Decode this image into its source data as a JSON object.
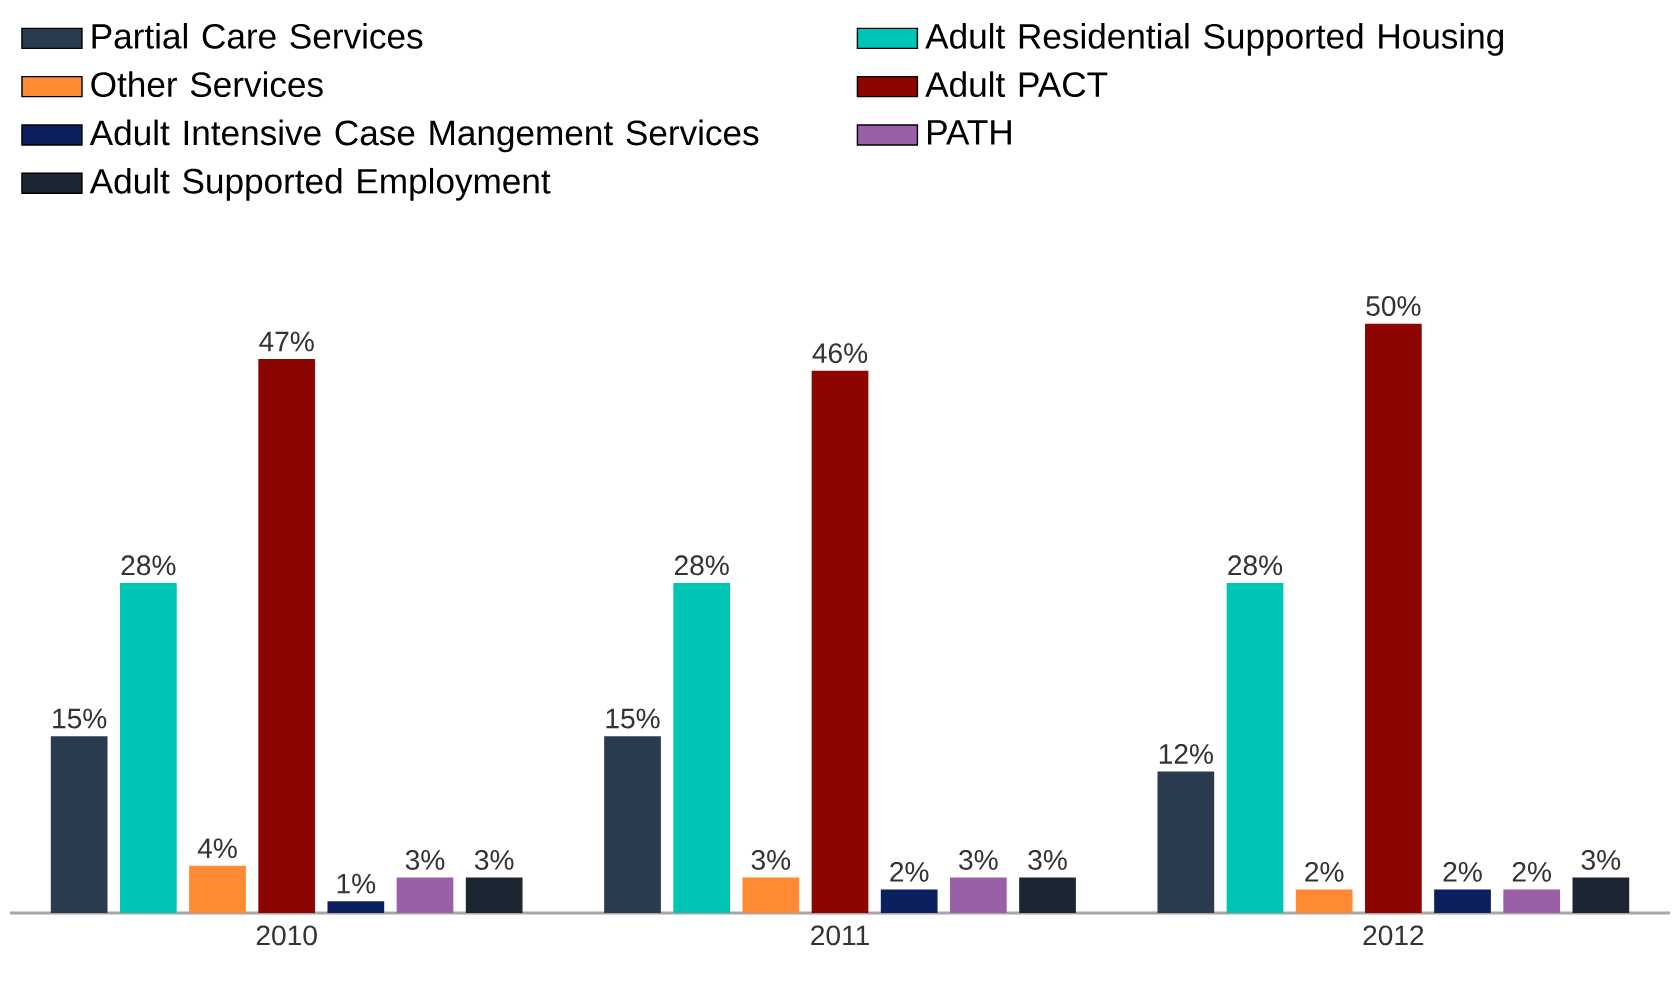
{
  "chart_data": {
    "type": "bar",
    "categories": [
      "2010",
      "2011",
      "2012"
    ],
    "legend": "top",
    "series": [
      {
        "name": "Partial Care Services",
        "color": "#2b3b4f",
        "values": [
          15,
          15,
          12
        ],
        "value_labels": [
          "15%",
          "15%",
          "12%"
        ]
      },
      {
        "name": "Adult Residential Supported Housing",
        "color": "#00c4b4",
        "values": [
          28,
          28,
          28
        ],
        "value_labels": [
          "28%",
          "28%",
          "28%"
        ]
      },
      {
        "name": "Other Services",
        "color": "#ff8a33",
        "values": [
          4,
          3,
          2
        ],
        "value_labels": [
          "4%",
          "3%",
          "2%"
        ]
      },
      {
        "name": "Adult PACT",
        "color": "#8c0500",
        "values": [
          47,
          46,
          50
        ],
        "value_labels": [
          "47%",
          "46%",
          "50%"
        ]
      },
      {
        "name": "Adult Intensive Case Mangement Services",
        "color": "#0c1f5e",
        "values": [
          1,
          2,
          2
        ],
        "value_labels": [
          "1%",
          "2%",
          "2%"
        ]
      },
      {
        "name": "PATH",
        "color": "#9b5fa8",
        "values": [
          3,
          3,
          2
        ],
        "value_labels": [
          "3%",
          "3%",
          "2%"
        ]
      },
      {
        "name": "Adult Supported Employment",
        "color": "#1c2632",
        "values": [
          3,
          3,
          3
        ],
        "value_labels": [
          "3%",
          "3%",
          "3%"
        ]
      }
    ]
  }
}
